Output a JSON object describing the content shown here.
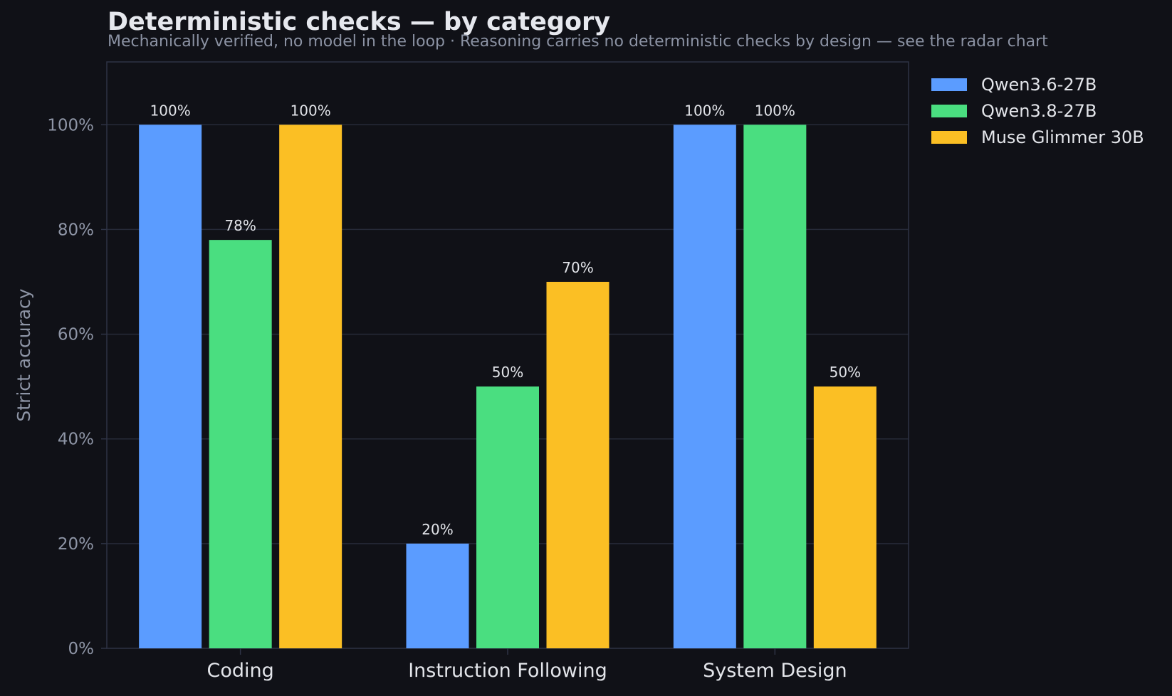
{
  "header": {
    "title": "Deterministic checks — by category",
    "subtitle": "Mechanically verified, no model in the loop · Reasoning carries no deterministic checks by design — see the radar chart"
  },
  "colors": {
    "background": "#101117",
    "grid": "#262a38",
    "spine": "#2e3345",
    "series": [
      "#5b9cff",
      "#4ade80",
      "#fbbf24"
    ]
  },
  "chart_data": {
    "type": "bar",
    "title": "Deterministic checks — by category",
    "subtitle": "Mechanically verified, no model in the loop · Reasoning carries no deterministic checks by design — see the radar chart",
    "xlabel": "",
    "ylabel": "Strict accuracy",
    "ylim": [
      0,
      112
    ],
    "yticks": [
      0,
      20,
      40,
      60,
      80,
      100
    ],
    "ytick_labels": [
      "0%",
      "20%",
      "40%",
      "60%",
      "80%",
      "100%"
    ],
    "categories": [
      "Coding",
      "Instruction Following",
      "System Design"
    ],
    "series": [
      {
        "name": "Qwen3.6-27B",
        "color": "#5b9cff",
        "values": [
          100,
          20,
          100
        ],
        "labels": [
          "100%",
          "20%",
          "100%"
        ]
      },
      {
        "name": "Qwen3.8-27B",
        "color": "#4ade80",
        "values": [
          78,
          50,
          100
        ],
        "labels": [
          "78%",
          "50%",
          "100%"
        ]
      },
      {
        "name": "Muse Glimmer 30B",
        "color": "#fbbf24",
        "values": [
          100,
          70,
          50
        ],
        "labels": [
          "100%",
          "70%",
          "50%"
        ]
      }
    ],
    "grid": true,
    "legend_position": "outside-right"
  }
}
